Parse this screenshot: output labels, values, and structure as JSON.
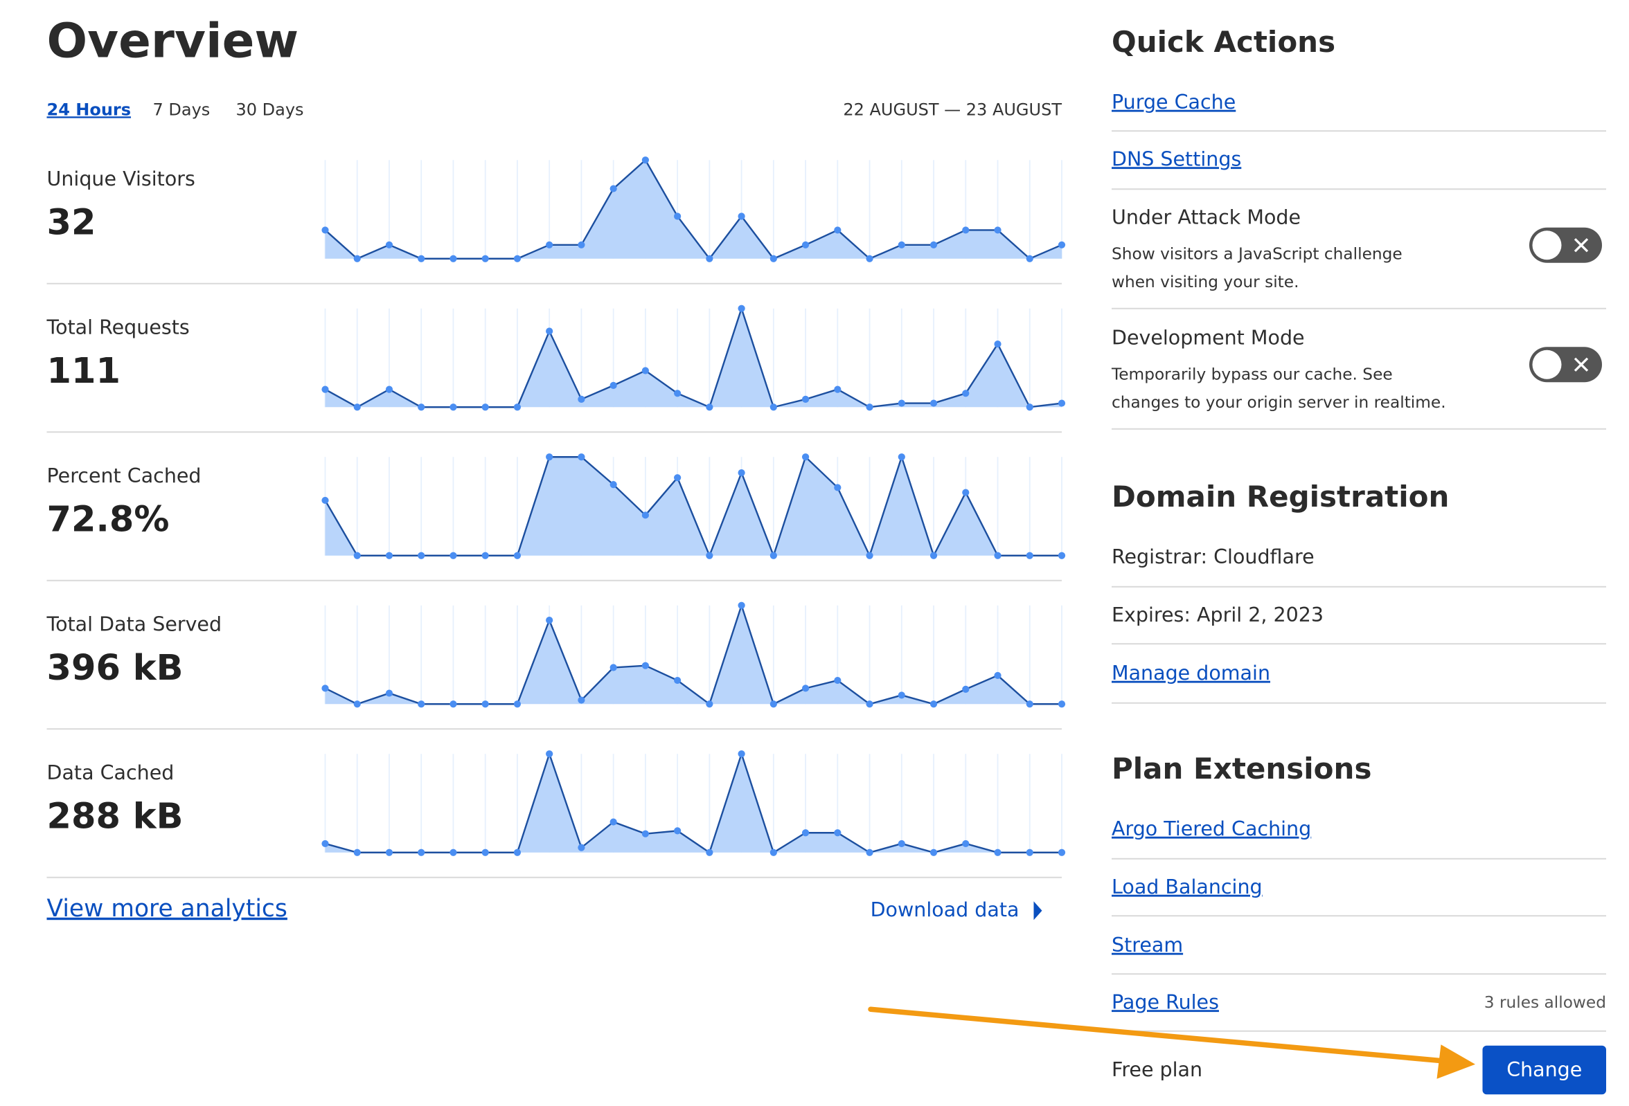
{
  "overview": {
    "title": "Overview",
    "tabs": [
      "24 Hours",
      "7 Days",
      "30 Days"
    ],
    "date_range": "22 AUGUST — 23 AUGUST",
    "view_more": "View more analytics",
    "download": "Download data"
  },
  "chart_data": [
    {
      "type": "area",
      "title": "Unique Visitors",
      "summary": "32",
      "color": "#b9d5fb",
      "ylim": [
        0,
        100
      ],
      "values": [
        29,
        0,
        14,
        0,
        0,
        0,
        0,
        14,
        14,
        71,
        100,
        43,
        0,
        43,
        0,
        14,
        29,
        0,
        14,
        14,
        29,
        29,
        0,
        14
      ]
    },
    {
      "type": "area",
      "title": "Total Requests",
      "summary": "111",
      "color": "#b9d5fb",
      "ylim": [
        0,
        100
      ],
      "values": [
        18,
        0,
        18,
        0,
        0,
        0,
        0,
        77,
        8,
        22,
        37,
        14,
        0,
        100,
        0,
        8,
        18,
        0,
        4,
        4,
        14,
        64,
        0,
        4
      ]
    },
    {
      "type": "area",
      "title": "Percent Cached",
      "summary": "72.8%",
      "color": "#b9d5fb",
      "ylim": [
        0,
        100
      ],
      "values": [
        56,
        0,
        0,
        0,
        0,
        0,
        0,
        100,
        100,
        72,
        41,
        79,
        0,
        84,
        0,
        100,
        69,
        0,
        100,
        0,
        64,
        0,
        0,
        0
      ]
    },
    {
      "type": "area",
      "title": "Total Data Served",
      "summary": "396 kB",
      "color": "#b9d5fb",
      "ylim": [
        0,
        100
      ],
      "values": [
        16,
        0,
        11,
        0,
        0,
        0,
        0,
        85,
        4,
        37,
        39,
        24,
        0,
        100,
        0,
        16,
        24,
        0,
        9,
        0,
        15,
        29,
        0,
        0
      ]
    },
    {
      "type": "area",
      "title": "Data Cached",
      "summary": "288 kB",
      "color": "#b9d5fb",
      "ylim": [
        0,
        100
      ],
      "values": [
        9,
        0,
        0,
        0,
        0,
        0,
        0,
        100,
        5,
        31,
        19,
        22,
        0,
        100,
        0,
        20,
        20,
        0,
        9,
        0,
        9,
        0,
        0,
        0
      ]
    }
  ],
  "quick_actions": {
    "title": "Quick Actions",
    "links": [
      "Purge Cache",
      "DNS Settings"
    ],
    "toggles": [
      {
        "label": "Under Attack Mode",
        "description": [
          "Show visitors a JavaScript challenge",
          "when visiting your site."
        ]
      },
      {
        "label": "Development Mode",
        "description": [
          "Temporarily bypass our cache. See",
          "changes to your origin server in realtime."
        ]
      }
    ]
  },
  "domain_registration": {
    "title": "Domain Registration",
    "registrar": "Registrar: Cloudflare",
    "expires": "Expires: April 2, 2023",
    "link": "Manage domain"
  },
  "plan_extensions": {
    "title": "Plan Extensions",
    "links": [
      "Argo Tiered Caching",
      "Load Balancing",
      "Stream",
      "Page Rules"
    ],
    "page_rules_note": "3 rules allowed",
    "plan": "Free plan",
    "button": "Change"
  }
}
